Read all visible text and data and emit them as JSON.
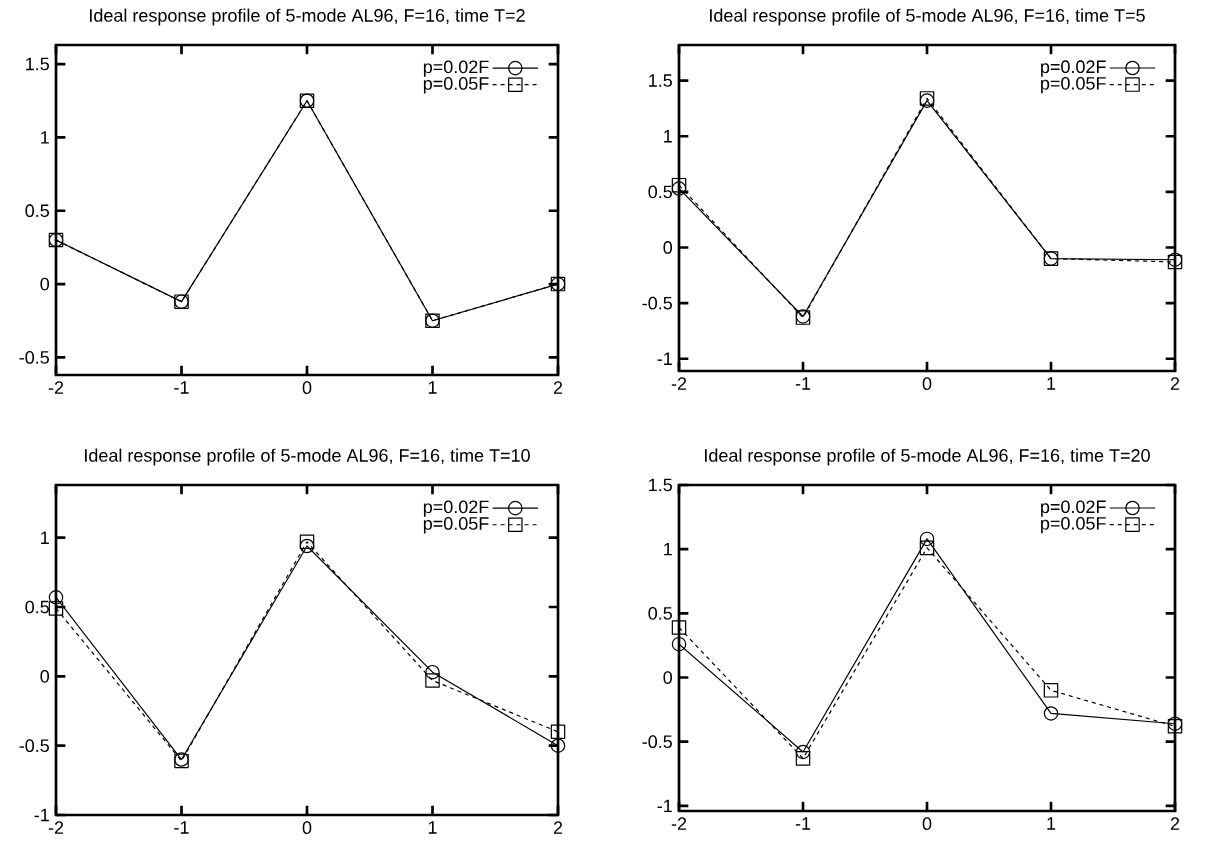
{
  "chart_data": [
    {
      "type": "line",
      "title": "Ideal response profile of 5-mode AL96, F=16, time T=2",
      "x": [
        -2,
        -1,
        0,
        1,
        2
      ],
      "xlim": [
        -2,
        2
      ],
      "xticks": [
        -2,
        -1,
        0,
        1,
        2
      ],
      "ylim": [
        -0.62,
        1.63
      ],
      "yticks": [
        -0.5,
        0,
        0.5,
        1,
        1.5
      ],
      "legend": "top right",
      "series": [
        {
          "name": "p=0.02F",
          "color": "#000000",
          "marker": "circle",
          "line_style": "solid",
          "values": [
            0.3,
            -0.12,
            1.25,
            -0.25,
            0
          ]
        },
        {
          "name": "p=0.05F",
          "color": "#000000",
          "marker": "square",
          "line_style": "dashed",
          "values": [
            0.3,
            -0.12,
            1.25,
            -0.25,
            0
          ]
        }
      ]
    },
    {
      "type": "line",
      "title": "Ideal response profile of 5-mode AL96, F=16, time T=5",
      "x": [
        -2,
        -1,
        0,
        1,
        2
      ],
      "xlim": [
        -2,
        2
      ],
      "xticks": [
        -2,
        -1,
        0,
        1,
        2
      ],
      "ylim": [
        -1.11,
        1.82
      ],
      "yticks": [
        -1,
        -0.5,
        0,
        0.5,
        1,
        1.5
      ],
      "legend": "top right",
      "series": [
        {
          "name": "p=0.02F",
          "color": "#000000",
          "marker": "circle",
          "line_style": "solid",
          "values": [
            0.53,
            -0.62,
            1.32,
            -0.1,
            -0.11
          ]
        },
        {
          "name": "p=0.05F",
          "color": "#000000",
          "marker": "square",
          "line_style": "dashed",
          "values": [
            0.56,
            -0.63,
            1.34,
            -0.1,
            -0.13
          ]
        }
      ]
    },
    {
      "type": "line",
      "title": "Ideal response profile of 5-mode AL96, F=16, time T=10",
      "x": [
        -2,
        -1,
        0,
        1,
        2
      ],
      "xlim": [
        -2,
        2
      ],
      "xticks": [
        -2,
        -1,
        0,
        1,
        2
      ],
      "ylim": [
        -1,
        1.38
      ],
      "yticks": [
        -1,
        -0.5,
        0,
        0.5,
        1
      ],
      "legend": "top right",
      "series": [
        {
          "name": "p=0.02F",
          "color": "#000000",
          "marker": "circle",
          "line_style": "solid",
          "values": [
            0.57,
            -0.6,
            0.94,
            0.03,
            -0.5
          ]
        },
        {
          "name": "p=0.05F",
          "color": "#000000",
          "marker": "square",
          "line_style": "dashed",
          "values": [
            0.49,
            -0.61,
            0.97,
            -0.03,
            -0.4
          ]
        }
      ]
    },
    {
      "type": "line",
      "title": "Ideal response profile of 5-mode AL96, F=16, time T=20",
      "x": [
        -2,
        -1,
        0,
        1,
        2
      ],
      "xlim": [
        -2,
        2
      ],
      "xticks": [
        -2,
        -1,
        0,
        1,
        2
      ],
      "ylim": [
        -1.04,
        1.5
      ],
      "yticks": [
        -1,
        -0.5,
        0,
        0.5,
        1,
        1.5
      ],
      "legend": "top right",
      "series": [
        {
          "name": "p=0.02F",
          "color": "#000000",
          "marker": "circle",
          "line_style": "solid",
          "values": [
            0.26,
            -0.58,
            1.08,
            -0.28,
            -0.36
          ]
        },
        {
          "name": "p=0.05F",
          "color": "#000000",
          "marker": "square",
          "line_style": "dashed",
          "values": [
            0.39,
            -0.63,
            1.01,
            -0.1,
            -0.38
          ]
        }
      ]
    }
  ]
}
